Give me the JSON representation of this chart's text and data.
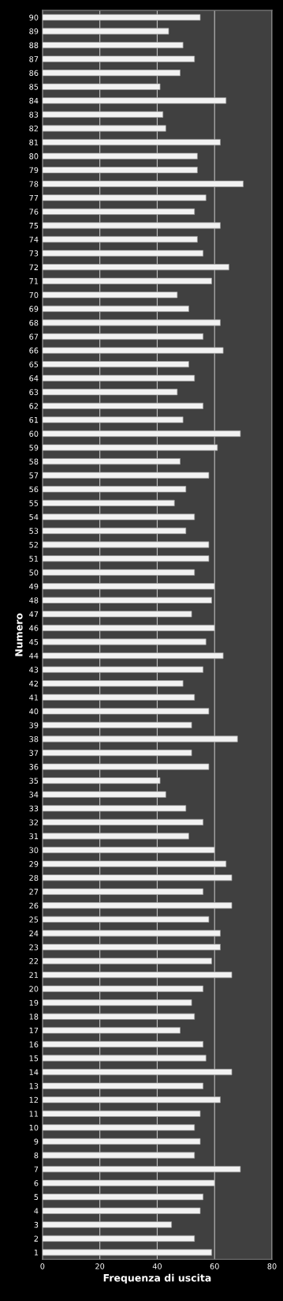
{
  "chart_data": {
    "type": "bar",
    "orientation": "horizontal",
    "xlabel": "Frequenza di uscita",
    "ylabel": "Numero",
    "categories": [
      "90",
      "89",
      "88",
      "87",
      "86",
      "85",
      "84",
      "83",
      "82",
      "81",
      "80",
      "79",
      "78",
      "77",
      "76",
      "75",
      "74",
      "73",
      "72",
      "71",
      "70",
      "69",
      "68",
      "67",
      "66",
      "65",
      "64",
      "63",
      "62",
      "61",
      "60",
      "59",
      "58",
      "57",
      "56",
      "55",
      "54",
      "53",
      "52",
      "51",
      "50",
      "49",
      "48",
      "47",
      "46",
      "45",
      "44",
      "43",
      "42",
      "41",
      "40",
      "39",
      "38",
      "37",
      "36",
      "35",
      "34",
      "33",
      "32",
      "31",
      "30",
      "29",
      "28",
      "27",
      "26",
      "25",
      "24",
      "23",
      "22",
      "21",
      "20",
      "19",
      "18",
      "17",
      "16",
      "15",
      "14",
      "13",
      "12",
      "11",
      "10",
      "9",
      "8",
      "7",
      "6",
      "5",
      "4",
      "3",
      "2",
      "1"
    ],
    "values": [
      55,
      44,
      49,
      53,
      48,
      41,
      64,
      42,
      43,
      62,
      54,
      54,
      70,
      57,
      53,
      62,
      54,
      56,
      65,
      59,
      47,
      51,
      62,
      56,
      63,
      51,
      53,
      47,
      56,
      49,
      69,
      61,
      48,
      58,
      50,
      46,
      53,
      50,
      58,
      58,
      53,
      60,
      59,
      52,
      60,
      57,
      63,
      56,
      49,
      53,
      58,
      52,
      68,
      52,
      58,
      41,
      43,
      50,
      56,
      51,
      60,
      64,
      66,
      56,
      66,
      58,
      62,
      62,
      59,
      66,
      56,
      52,
      53,
      48,
      56,
      57,
      66,
      56,
      62,
      55,
      53,
      55,
      53,
      69,
      60,
      56,
      55,
      45,
      53,
      59
    ],
    "color": "#f2f2f2",
    "xlim": [
      0,
      80
    ],
    "xticks": [
      0,
      20,
      40,
      60,
      80
    ],
    "grid": "x"
  }
}
